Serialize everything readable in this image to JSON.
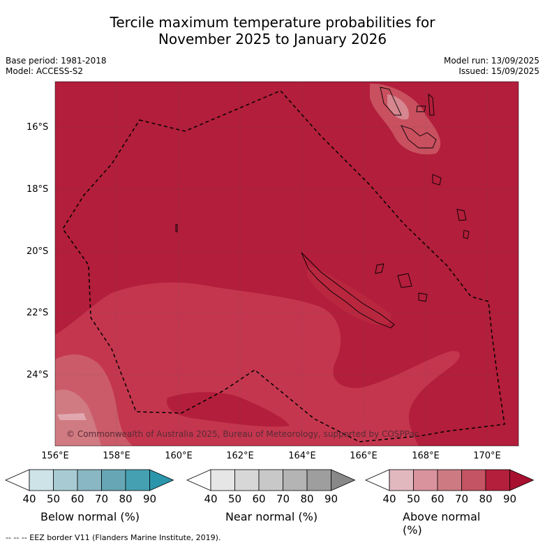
{
  "title_line1": "Tercile maximum temperature probabilities for",
  "title_line2": "November 2025 to January 2026",
  "base_period": "Base period: 1981-2018",
  "model": "Model: ACCESS-S2",
  "model_run": "Model run: 13/09/2025",
  "issued": "Issued: 15/09/2025",
  "copyright": "© Commonwealth of Australia 2025, Bureau of Meteorology, supported by COSPPac",
  "footer": "--  --  -- EEZ border V11 (Flanders Marine Institute, 2019).",
  "lat_labels": [
    "16°S",
    "18°S",
    "20°S",
    "22°S",
    "24°S"
  ],
  "lon_labels": [
    "156°E",
    "158°E",
    "160°E",
    "162°E",
    "164°E",
    "166°E",
    "168°E",
    "170°E"
  ],
  "colorbars": [
    {
      "label": "Below normal (%)",
      "ticks": [
        "40",
        "50",
        "60",
        "70",
        "80",
        "90"
      ],
      "colors": [
        "#ffffff",
        "#cde3e8",
        "#a8cbd3",
        "#89b7c3",
        "#67a6b5",
        "#45a0b2",
        "#2b95ab"
      ]
    },
    {
      "label": "Near normal (%)",
      "ticks": [
        "40",
        "50",
        "60",
        "70",
        "80",
        "90"
      ],
      "colors": [
        "#ffffff",
        "#e6e6e6",
        "#d7d7d7",
        "#c8c8c8",
        "#b4b4b4",
        "#9e9e9e",
        "#888888"
      ]
    },
    {
      "label": "Above normal (%)",
      "ticks": [
        "40",
        "50",
        "60",
        "70",
        "80",
        "90"
      ],
      "colors": [
        "#ffffff",
        "#e2b8bf",
        "#d8939c",
        "#cd7a82",
        "#c45463",
        "#b41f3c",
        "#a8102f"
      ]
    }
  ],
  "colors": {
    "above_90": "#b21e3b",
    "above_80": "#c4364e",
    "above_70": "#cb5b68",
    "above_60": "#d07a82"
  }
}
